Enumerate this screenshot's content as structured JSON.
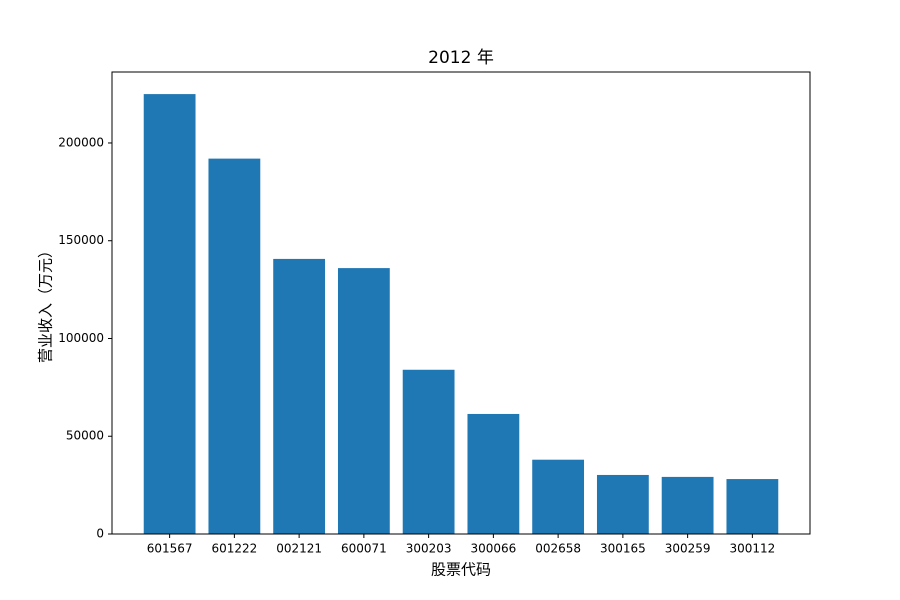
{
  "chart_data": {
    "type": "bar",
    "title": "2012 年",
    "x_label": "股票代码",
    "y_label": "营业收入（万元）",
    "categories": [
      "601567",
      "601222",
      "002121",
      "600071",
      "300203",
      "300066",
      "002658",
      "300165",
      "300259",
      "300112"
    ],
    "values": [
      225000,
      192000,
      140700,
      136000,
      84000,
      61400,
      38000,
      30200,
      29200,
      28100
    ],
    "color": "#1f77b4",
    "ylim": [
      0,
      236300
    ],
    "yticks": [
      0,
      50000,
      100000,
      150000,
      200000
    ],
    "grid": false
  }
}
